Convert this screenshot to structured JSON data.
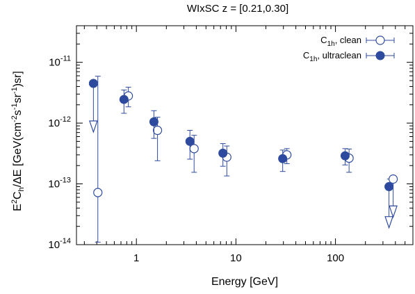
{
  "chart_data": {
    "type": "scatter",
    "title": "WIxSC z = [0.21,0.30]",
    "xlabel": "Energy [GeV]",
    "ylabel": "E^2C_h/ΔE [GeV(cm^-2s^-1sr^-1)sr]",
    "xscale": "log",
    "yscale": "log",
    "xlim": [
      0.25,
      600
    ],
    "ylim": [
      1e-14,
      4e-11
    ],
    "x_ticks": [
      {
        "value": 1,
        "label": "1"
      },
      {
        "value": 10,
        "label": "10"
      },
      {
        "value": 100,
        "label": "100"
      }
    ],
    "y_ticks": [
      {
        "value": 1e-14,
        "base": "10",
        "exp": "-14"
      },
      {
        "value": 1e-13,
        "base": "10",
        "exp": "-13"
      },
      {
        "value": 1e-12,
        "base": "10",
        "exp": "-12"
      },
      {
        "value": 1e-11,
        "base": "10",
        "exp": "-11"
      }
    ],
    "grid": false,
    "legend_position": "top-right",
    "series": [
      {
        "name": "C1h, clean",
        "legend_main": "C",
        "legend_sub": "1h",
        "legend_rest": ", clean",
        "marker": "open-circle",
        "color": "#2e4a9e",
        "points": [
          {
            "x": 0.41,
            "y": 7.2e-14,
            "y_low": 1.1e-14,
            "y_high": 5.9e-12,
            "x_low": 0.375,
            "x_high": 0.44
          },
          {
            "x": 0.83,
            "y": 2.8e-12,
            "y_low": 1.85e-12,
            "y_high": 3.9e-12,
            "x_low": 0.75,
            "x_high": 0.92
          },
          {
            "x": 1.63,
            "y": 7.6e-13,
            "y_low": 2.4e-13,
            "y_high": 1.25e-12,
            "x_low": 1.5,
            "x_high": 1.8
          },
          {
            "x": 3.8,
            "y": 3.8e-13,
            "y_low": 1.55e-13,
            "y_high": 6.3e-13,
            "x_low": 3.5,
            "x_high": 4.1
          },
          {
            "x": 8.1,
            "y": 2.75e-13,
            "y_low": 1.35e-13,
            "y_high": 4.2e-13,
            "x_low": 7.5,
            "x_high": 8.8
          },
          {
            "x": 32.5,
            "y": 3e-13,
            "y_low": 2.15e-13,
            "y_high": 3.8e-13,
            "x_low": 29.5,
            "x_high": 35.5
          },
          {
            "x": 137,
            "y": 2.65e-13,
            "y_low": 1.55e-13,
            "y_high": 3.75e-13,
            "x_low": 125,
            "x_high": 150
          },
          {
            "x": 380,
            "y": 1.2e-13,
            "upper_limit": true,
            "limit_to": 3e-14,
            "x_low": 330,
            "x_high": 420
          }
        ]
      },
      {
        "name": "C1h, ultraclean",
        "legend_main": "C",
        "legend_sub": "1h",
        "legend_rest": ", ultraclean",
        "marker": "filled-circle",
        "color": "#2e4a9e",
        "points": [
          {
            "x": 0.37,
            "y": 4.5e-12,
            "upper_limit": true,
            "limit_to": 7.5e-13,
            "x_low": 0.34,
            "x_high": 0.41
          },
          {
            "x": 0.75,
            "y": 2.45e-12,
            "y_low": 1.45e-12,
            "y_high": 3.5e-12,
            "x_low": 0.68,
            "x_high": 0.82
          },
          {
            "x": 1.5,
            "y": 1.05e-12,
            "y_low": 5.6e-13,
            "y_high": 1.6e-12,
            "x_low": 1.37,
            "x_high": 1.63
          },
          {
            "x": 3.45,
            "y": 5e-13,
            "y_low": 2.55e-13,
            "y_high": 7.6e-13,
            "x_low": 3.2,
            "x_high": 3.75
          },
          {
            "x": 7.4,
            "y": 3.2e-13,
            "y_low": 1.95e-13,
            "y_high": 4.6e-13,
            "x_low": 6.8,
            "x_high": 8.0
          },
          {
            "x": 29.5,
            "y": 2.6e-13,
            "y_low": 1.6e-13,
            "y_high": 3.6e-13,
            "x_low": 27,
            "x_high": 32
          },
          {
            "x": 125,
            "y": 2.9e-13,
            "y_low": 2.05e-13,
            "y_high": 3.8e-13,
            "x_low": 115,
            "x_high": 136
          },
          {
            "x": 345,
            "y": 9e-14,
            "upper_limit": true,
            "limit_to": 2e-14,
            "x_low": 315,
            "x_high": 378
          }
        ]
      }
    ]
  }
}
